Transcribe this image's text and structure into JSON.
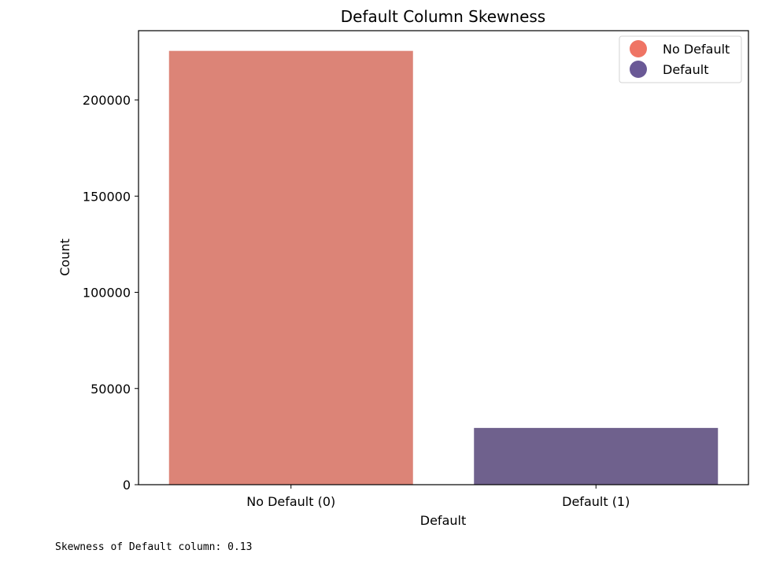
{
  "chart_data": {
    "type": "bar",
    "title": "Default Column Skewness",
    "xlabel": "Default",
    "ylabel": "Count",
    "categories": [
      "No Default (0)",
      "Default (1)"
    ],
    "values": [
      225500,
      29500
    ],
    "colors": [
      "#dc8477",
      "#6f618d"
    ],
    "ylim": [
      0,
      236000
    ],
    "yticks": [
      0,
      50000,
      100000,
      150000,
      200000
    ],
    "grid": false,
    "legend": {
      "placement": "top-right",
      "entries": [
        {
          "label": "No Default",
          "color": "#ef7464"
        },
        {
          "label": "Default",
          "color": "#6a5996"
        }
      ]
    }
  },
  "output": {
    "text": "Skewness of Default column: 0.13"
  }
}
